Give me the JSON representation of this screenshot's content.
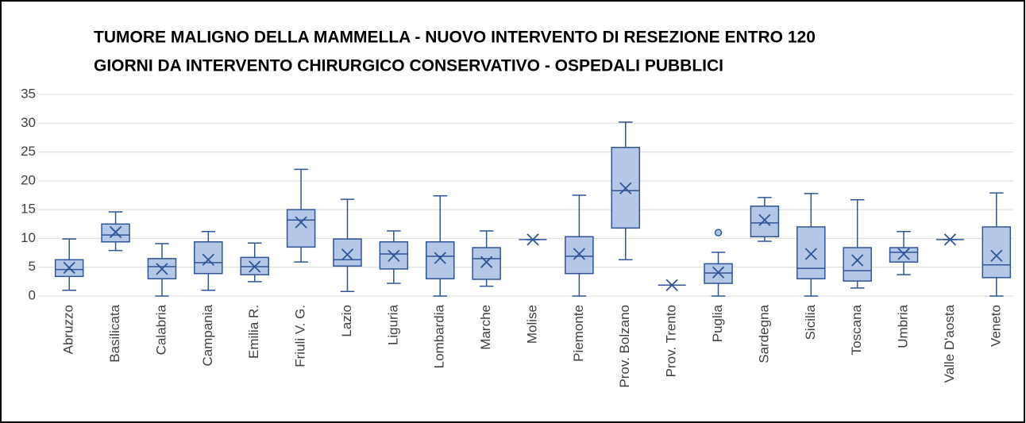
{
  "chart_data": {
    "type": "box",
    "title": [
      "TUMORE MALIGNO DELLA MAMMELLA - NUOVO INTERVENTO DI RESEZIONE ENTRO 120",
      "GIORNI DA INTERVENTO CHIRURGICO CONSERVATIVO - OSPEDALI PUBBLICI"
    ],
    "categories": [
      "Abruzzo",
      "Basilicata",
      "Calabria",
      "Campania",
      "Emilia R.",
      "Friuli  V. G.",
      "Lazio",
      "Liguria",
      "Lombardia",
      "Marche",
      "Molise",
      "Piemonte",
      "Prov. Bolzano",
      "Prov. Trento",
      "Puglia",
      "Sardegna",
      "Sicilia",
      "Toscana",
      "Umbria",
      "Valle D'aosta",
      "Veneto"
    ],
    "boxes": [
      {
        "min": 1.0,
        "q1": 3.4,
        "median": 4.6,
        "q3": 6.3,
        "max": 9.9,
        "mean": 4.9,
        "outliers": []
      },
      {
        "min": 7.9,
        "q1": 9.4,
        "median": 10.6,
        "q3": 12.5,
        "max": 14.6,
        "mean": 11.1,
        "outliers": []
      },
      {
        "min": 0,
        "q1": 3.0,
        "median": 5.1,
        "q3": 6.5,
        "max": 9.1,
        "mean": 4.7,
        "outliers": []
      },
      {
        "min": 1.0,
        "q1": 3.9,
        "median": 5.8,
        "q3": 9.4,
        "max": 11.2,
        "mean": 6.3,
        "outliers": []
      },
      {
        "min": 2.5,
        "q1": 3.7,
        "median": 5.1,
        "q3": 6.7,
        "max": 9.2,
        "mean": 5.1,
        "outliers": []
      },
      {
        "min": 5.9,
        "q1": 8.5,
        "median": 13.2,
        "q3": 15.0,
        "max": 22.0,
        "mean": 12.8,
        "outliers": []
      },
      {
        "min": 0.8,
        "q1": 5.2,
        "median": 6.3,
        "q3": 9.9,
        "max": 16.8,
        "mean": 7.2,
        "outliers": []
      },
      {
        "min": 2.2,
        "q1": 4.7,
        "median": 7.3,
        "q3": 9.4,
        "max": 11.3,
        "mean": 7.0,
        "outliers": []
      },
      {
        "min": 0,
        "q1": 3.0,
        "median": 6.9,
        "q3": 9.4,
        "max": 17.4,
        "mean": 6.6,
        "outliers": []
      },
      {
        "min": 1.7,
        "q1": 2.9,
        "median": 6.5,
        "q3": 8.4,
        "max": 11.3,
        "mean": 5.9,
        "outliers": []
      },
      {
        "min": 9.8,
        "q1": 9.8,
        "median": 9.8,
        "q3": 9.8,
        "max": 9.8,
        "mean": 9.8,
        "outliers": []
      },
      {
        "min": 0,
        "q1": 3.9,
        "median": 6.9,
        "q3": 10.3,
        "max": 17.5,
        "mean": 7.3,
        "outliers": []
      },
      {
        "min": 6.3,
        "q1": 11.8,
        "median": 18.3,
        "q3": 25.8,
        "max": 30.2,
        "mean": 18.7,
        "outliers": []
      },
      {
        "min": 1.9,
        "q1": 1.9,
        "median": 1.9,
        "q3": 1.9,
        "max": 1.9,
        "mean": 1.9,
        "outliers": []
      },
      {
        "min": 0,
        "q1": 2.2,
        "median": 4.0,
        "q3": 5.6,
        "max": 7.6,
        "mean": 4.1,
        "outliers": [
          11.0
        ]
      },
      {
        "min": 9.5,
        "q1": 10.3,
        "median": 12.7,
        "q3": 15.6,
        "max": 17.1,
        "mean": 13.2,
        "outliers": []
      },
      {
        "min": 0,
        "q1": 3.0,
        "median": 4.8,
        "q3": 12.0,
        "max": 17.8,
        "mean": 7.3,
        "outliers": []
      },
      {
        "min": 1.4,
        "q1": 2.6,
        "median": 4.4,
        "q3": 8.4,
        "max": 16.7,
        "mean": 6.2,
        "outliers": []
      },
      {
        "min": 3.7,
        "q1": 5.9,
        "median": 7.6,
        "q3": 8.4,
        "max": 11.2,
        "mean": 7.3,
        "outliers": []
      },
      {
        "min": 9.8,
        "q1": 9.8,
        "median": 9.8,
        "q3": 9.8,
        "max": 9.8,
        "mean": 9.8,
        "outliers": []
      },
      {
        "min": 0,
        "q1": 3.2,
        "median": 5.4,
        "q3": 12.0,
        "max": 17.9,
        "mean": 7.0,
        "outliers": []
      }
    ],
    "color": "#b4c7e7",
    "edge_color": "#2f5597",
    "ylim": [
      0,
      35
    ],
    "yticks": [
      0,
      5,
      10,
      15,
      20,
      25,
      30,
      35
    ],
    "grid": true
  }
}
